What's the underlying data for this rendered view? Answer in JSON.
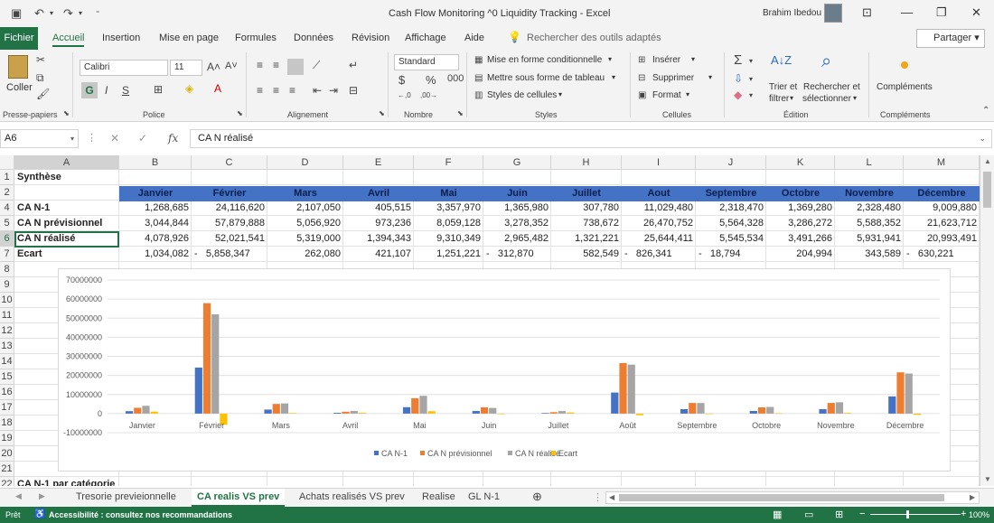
{
  "titlebar": {
    "doc_title": "Cash Flow Monitoring ^0 Liquidity Tracking  -  Excel",
    "user": "Brahim Ibedou"
  },
  "tabs": {
    "file": "Fichier",
    "items": [
      "Accueil",
      "Insertion",
      "Mise en page",
      "Formules",
      "Données",
      "Révision",
      "Affichage",
      "Aide"
    ],
    "search": "Rechercher des outils adaptés",
    "share": "Partager"
  },
  "ribbon": {
    "clipboard": {
      "paste": "Coller",
      "label": "Presse-papiers"
    },
    "font": {
      "name": "Calibri",
      "size": "11",
      "label": "Police",
      "bold": "G",
      "italic": "I",
      "underline": "S"
    },
    "alignment": {
      "label": "Alignement"
    },
    "number": {
      "format": "Standard",
      "label": "Nombre"
    },
    "styles": {
      "cond": "Mise en forme conditionnelle",
      "table": "Mettre sous forme de tableau",
      "cell": "Styles de cellules",
      "label": "Styles"
    },
    "cells": {
      "insert": "Insérer",
      "delete": "Supprimer",
      "format": "Format",
      "label": "Cellules"
    },
    "editing": {
      "sort1": "Trier et",
      "sort2": "filtrer",
      "find1": "Rechercher et",
      "find2": "sélectionner",
      "label": "Édition"
    },
    "addins": {
      "name": "Compléments",
      "label": "Compléments"
    }
  },
  "formula_bar": {
    "cell_ref": "A6",
    "content": "CA N réalisé"
  },
  "columns": [
    "A",
    "B",
    "C",
    "D",
    "E",
    "F",
    "G",
    "H",
    "I",
    "J",
    "K",
    "L",
    "M"
  ],
  "rows": [
    "1",
    "2",
    "4",
    "5",
    "6",
    "7",
    "8",
    "9",
    "10",
    "11",
    "12",
    "13",
    "14",
    "15",
    "16",
    "17",
    "18",
    "19",
    "20",
    "21",
    "22"
  ],
  "sheet": {
    "title": "Synthèse",
    "months": [
      "Janvier",
      "Février",
      "Mars",
      "Avril",
      "Mai",
      "Juin",
      "Juillet",
      "Aout",
      "Septembre",
      "Octobre",
      "Novembre",
      "Décembre"
    ],
    "row_labels": [
      "CA N-1",
      "CA N prévisionnel",
      "CA N réalisé",
      "Ecart"
    ],
    "values": [
      [
        "1,268,685",
        "24,116,620",
        "2,107,050",
        "405,515",
        "3,357,970",
        "1,365,980",
        "307,780",
        "11,029,480",
        "2,318,470",
        "1,369,280",
        "2,328,480",
        "9,009,880"
      ],
      [
        "3,044,844",
        "57,879,888",
        "5,056,920",
        "973,236",
        "8,059,128",
        "3,278,352",
        "738,672",
        "26,470,752",
        "5,564,328",
        "3,286,272",
        "5,588,352",
        "21,623,712"
      ],
      [
        "4,078,926",
        "52,021,541",
        "5,319,000",
        "1,394,343",
        "9,310,349",
        "2,965,482",
        "1,321,221",
        "25,644,411",
        "5,545,534",
        "3,491,266",
        "5,931,941",
        "20,993,491"
      ],
      [
        "1,034,082",
        "-   5,858,347",
        "262,080",
        "421,107",
        "1,251,221",
        "-   312,870",
        "582,549",
        "-   826,341",
        "-   18,794",
        "204,994",
        "343,589",
        "-   630,221"
      ]
    ],
    "row22": "CA N-1 par catégorie"
  },
  "chart_data": {
    "type": "bar",
    "categories": [
      "Janvier",
      "Février",
      "Mars",
      "Avril",
      "Mai",
      "Juin",
      "Juillet",
      "Août",
      "Septembre",
      "Octobre",
      "Novembre",
      "Décembre"
    ],
    "y_ticks": [
      "70000000",
      "60000000",
      "50000000",
      "40000000",
      "30000000",
      "20000000",
      "10000000",
      "0",
      "-10000000"
    ],
    "ylim": [
      -10000000,
      70000000
    ],
    "legend_position": "bottom",
    "series": [
      {
        "name": "CA N-1",
        "color": "#4472c4",
        "values": [
          1268685,
          24116620,
          2107050,
          405515,
          3357970,
          1365980,
          307780,
          11029480,
          2318470,
          1369280,
          2328480,
          9009880
        ]
      },
      {
        "name": "CA N prévisionnel",
        "color": "#ed7d31",
        "values": [
          3044844,
          57879888,
          5056920,
          973236,
          8059128,
          3278352,
          738672,
          26470752,
          5564328,
          3286272,
          5588352,
          21623712
        ]
      },
      {
        "name": "CA N réalisé",
        "color": "#a5a5a5",
        "values": [
          4078926,
          52021541,
          5319000,
          1394343,
          9310349,
          2965482,
          1321221,
          25644411,
          5545534,
          3491266,
          5931941,
          20993491
        ]
      },
      {
        "name": "Ecart",
        "color": "#ffc000",
        "values": [
          1034082,
          -5858347,
          262080,
          421107,
          1251221,
          -312870,
          582549,
          -826341,
          -18794,
          204994,
          343589,
          -630221
        ]
      }
    ]
  },
  "sheet_tabs": [
    "Tresorie previeionnelle",
    "CA realis VS prev",
    "Achats realisés VS prev",
    "Realise",
    "GL N-1"
  ],
  "active_sheet": "CA realis VS prev",
  "status": {
    "ready": "Prêt",
    "accessibility": "Accessibilité : consultez nos recommandations",
    "zoom": "100%"
  }
}
